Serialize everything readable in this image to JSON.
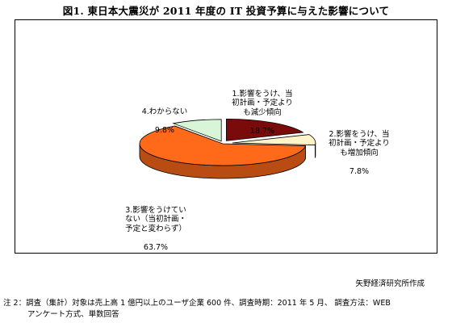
{
  "title": "図1. 東日本大震災が 2011 年度の IT 投資予算に与えた影響について",
  "chart_data": {
    "type": "pie",
    "style": "3d-exploded",
    "colors": [
      "#7a0b0b",
      "#fff5c8",
      "#ff6a1a",
      "#d8f5d8"
    ],
    "slices": [
      {
        "label": "1.影響をうけ、当\n初計画・予定より\nも減少傾向",
        "value": 18.7,
        "value_text": "18.7%"
      },
      {
        "label": "2.影響をうけ、当\n初計画・予定より\nも増加傾向",
        "value": 7.8,
        "value_text": "7.8%"
      },
      {
        "label": "3.影響をうけてい\nない（当初計画・\n予定と変わらず）",
        "value": 63.7,
        "value_text": "63.7%"
      },
      {
        "label": "4.わからない",
        "value": 9.8,
        "value_text": "9.8%"
      }
    ]
  },
  "source": "矢野経済研究所作成",
  "note_line1": "注 2：調査（集計）対象は売上高 1 億円以上のユーザ企業 600 件、調査時期：2011 年 5 月、 調査方法：WEB",
  "note_line2": "アンケート方式、単数回答"
}
